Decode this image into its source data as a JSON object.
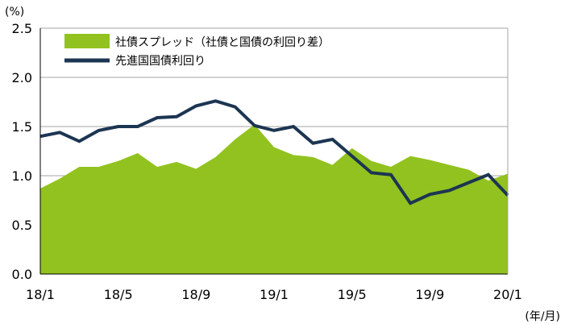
{
  "chart_data": {
    "type": "area+line",
    "y_unit_label": "(%)",
    "x_unit_label": "(年/月)",
    "ylim": [
      0,
      2.5
    ],
    "yticks": [
      "0.0",
      "0.5",
      "1.0",
      "1.5",
      "2.0",
      "2.5"
    ],
    "xtick_labels": [
      "18/1",
      "18/5",
      "18/9",
      "19/1",
      "19/5",
      "19/9",
      "20/1"
    ],
    "x": [
      "18/1",
      "18/2",
      "18/3",
      "18/4",
      "18/5",
      "18/6",
      "18/7",
      "18/8",
      "18/9",
      "18/10",
      "18/11",
      "18/12",
      "19/1",
      "19/2",
      "19/3",
      "19/4",
      "19/5",
      "19/6",
      "19/7",
      "19/8",
      "19/9",
      "19/10",
      "19/11",
      "19/12",
      "20/1"
    ],
    "grid": true,
    "legend_position": "top-left",
    "series": [
      {
        "name": "社債スプレッド（社債と国債の利回り差）",
        "type": "area",
        "color": "#92C21F",
        "values": [
          0.87,
          0.97,
          1.09,
          1.09,
          1.15,
          1.23,
          1.09,
          1.14,
          1.07,
          1.19,
          1.37,
          1.52,
          1.29,
          1.21,
          1.19,
          1.11,
          1.28,
          1.15,
          1.09,
          1.2,
          1.16,
          1.11,
          1.06,
          0.95,
          1.02
        ]
      },
      {
        "name": "先進国国債利回り",
        "type": "line",
        "color": "#1C3552",
        "values": [
          1.4,
          1.44,
          1.35,
          1.46,
          1.5,
          1.5,
          1.59,
          1.6,
          1.71,
          1.76,
          1.7,
          1.51,
          1.46,
          1.5,
          1.33,
          1.37,
          1.2,
          1.03,
          1.01,
          0.72,
          0.81,
          0.85,
          0.93,
          1.01,
          0.8
        ]
      }
    ]
  }
}
